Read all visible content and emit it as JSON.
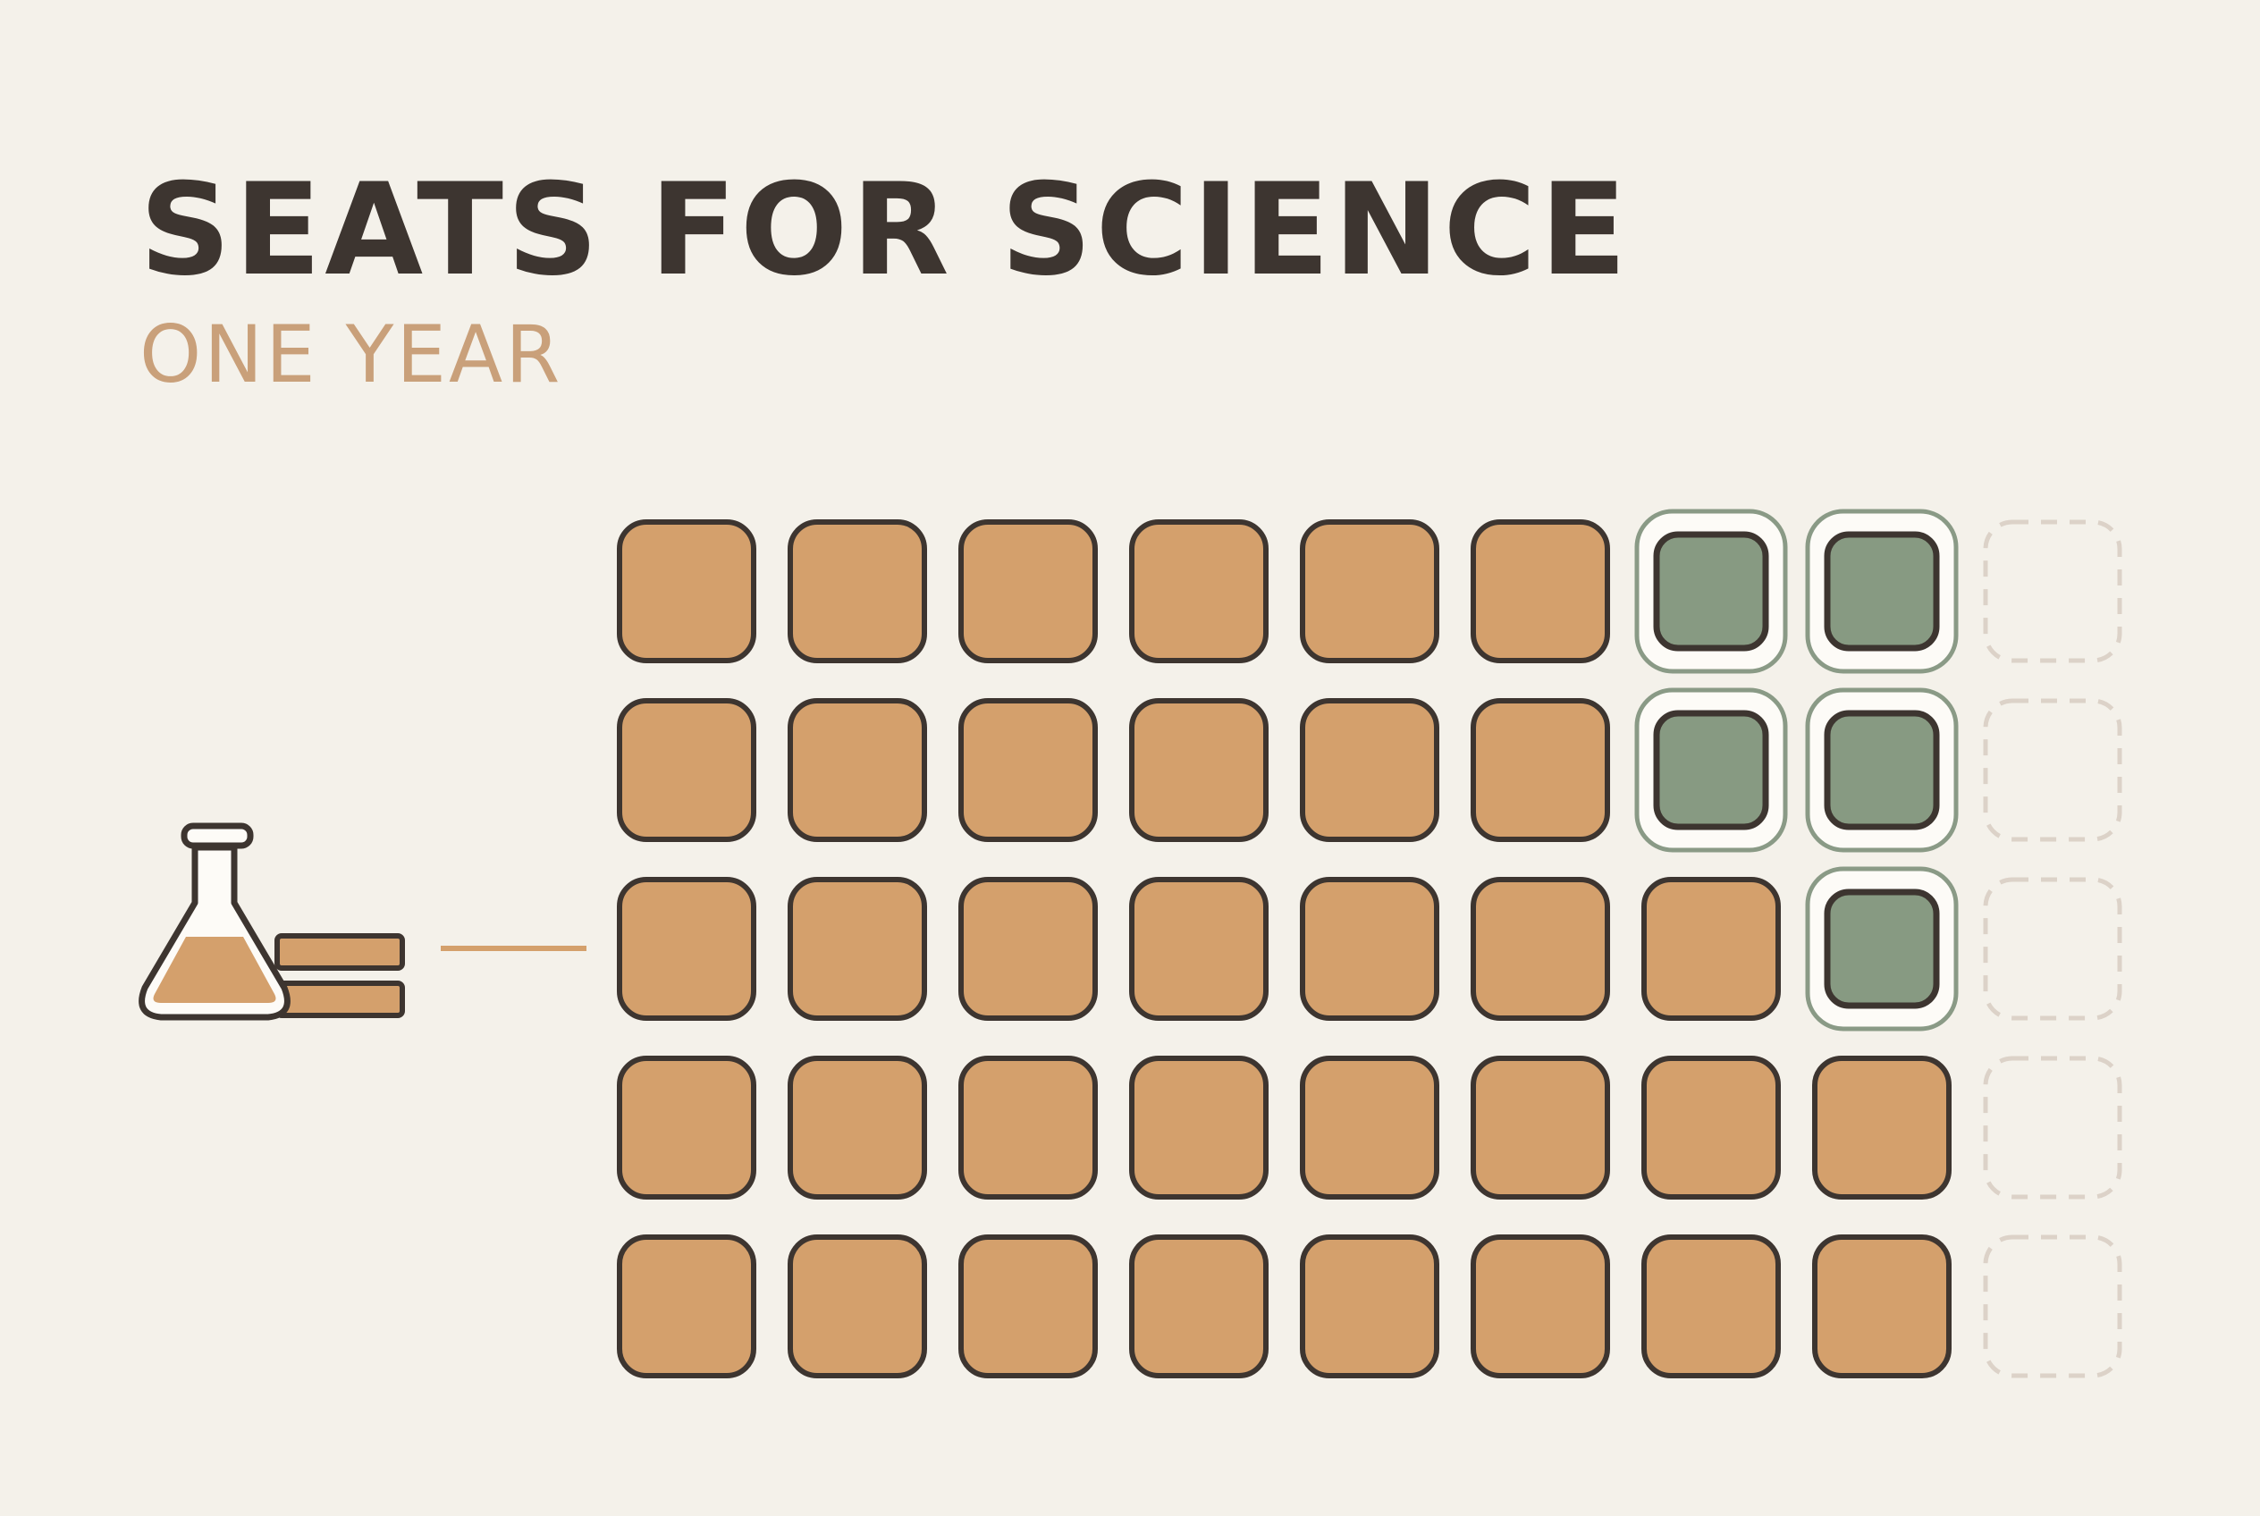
{
  "header": {
    "title": "SEATS FOR SCIENCE",
    "subtitle": "ONE YEAR"
  },
  "grid": {
    "rows": [
      [
        "filled",
        "filled",
        "filled",
        "filled",
        "filled",
        "filled",
        "highlighted",
        "highlighted",
        "empty"
      ],
      [
        "filled",
        "filled",
        "filled",
        "filled",
        "filled",
        "filled",
        "highlighted",
        "highlighted",
        "empty"
      ],
      [
        "filled",
        "filled",
        "filled",
        "filled",
        "filled",
        "filled",
        "filled",
        "highlighted",
        "empty"
      ],
      [
        "filled",
        "filled",
        "filled",
        "filled",
        "filled",
        "filled",
        "filled",
        "filled",
        "empty"
      ],
      [
        "filled",
        "filled",
        "filled",
        "filled",
        "filled",
        "filled",
        "filled",
        "filled",
        "empty"
      ]
    ]
  }
}
